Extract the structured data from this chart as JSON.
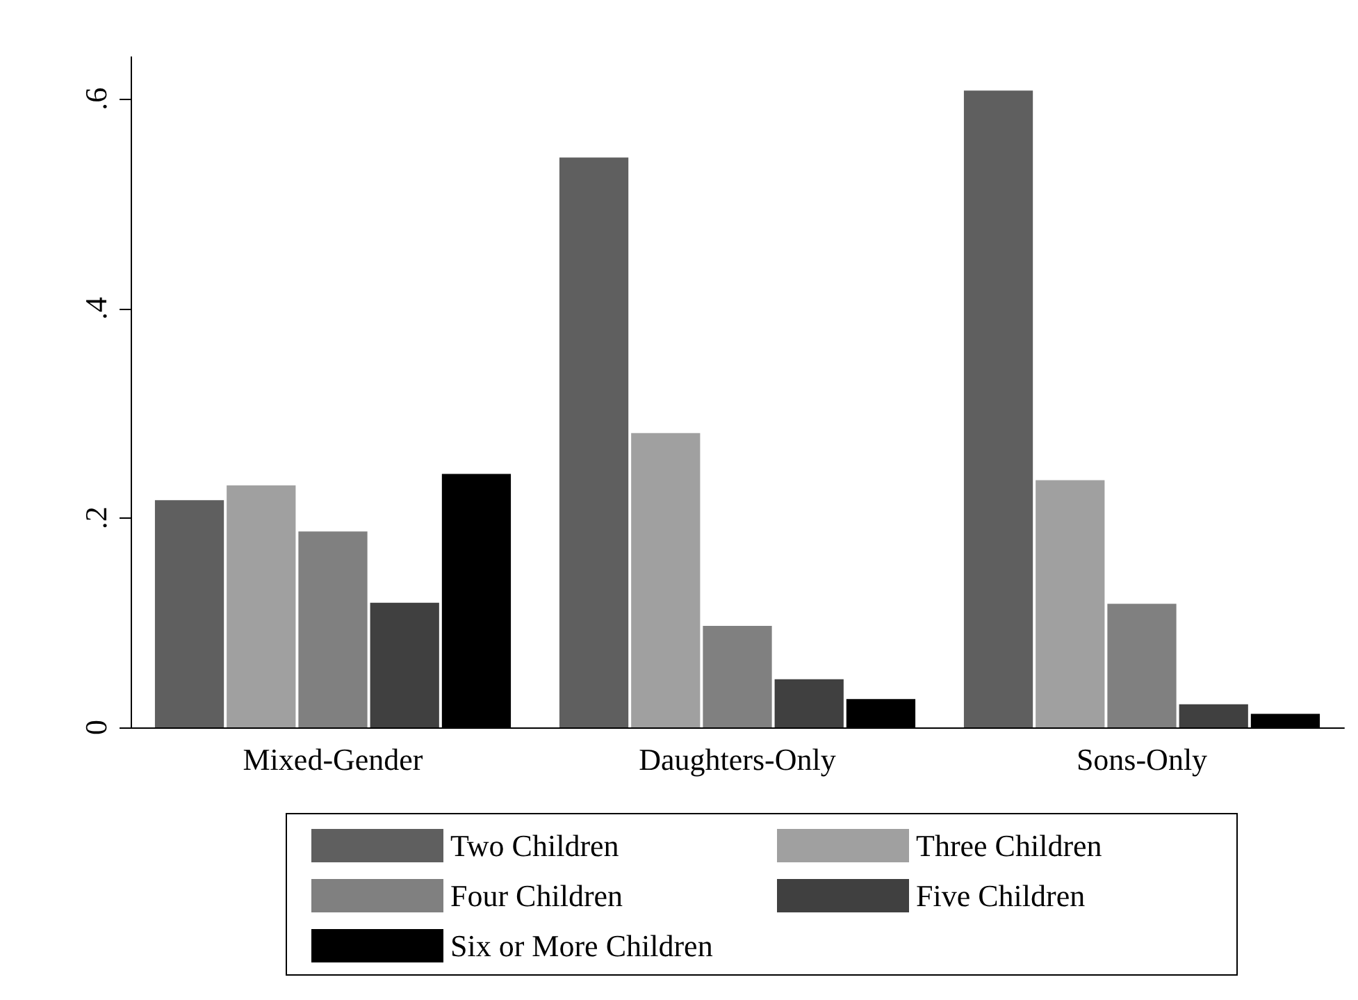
{
  "chart_data": {
    "type": "bar",
    "categories": [
      "Mixed-Gender",
      "Daughters-Only",
      "Sons-Only"
    ],
    "series": [
      {
        "name": "Two Children",
        "color": "#5f5f5f",
        "values": [
          0.217,
          0.544,
          0.608
        ]
      },
      {
        "name": "Three Children",
        "color": "#a0a0a0",
        "values": [
          0.231,
          0.281,
          0.236
        ]
      },
      {
        "name": "Four Children",
        "color": "#808080",
        "values": [
          0.187,
          0.097,
          0.118
        ]
      },
      {
        "name": "Five Children",
        "color": "#404040",
        "values": [
          0.119,
          0.046,
          0.022
        ]
      },
      {
        "name": "Six or More Children",
        "color": "#000000",
        "values": [
          0.242,
          0.027,
          0.013
        ]
      }
    ],
    "ylim": [
      0,
      0.64
    ],
    "yticks": [
      {
        "value": 0,
        "label": "0"
      },
      {
        "value": 0.2,
        "label": ".2"
      },
      {
        "value": 0.4,
        "label": ".4"
      },
      {
        "value": 0.6,
        "label": ".6"
      }
    ],
    "grid": false,
    "legend": "bottom"
  }
}
